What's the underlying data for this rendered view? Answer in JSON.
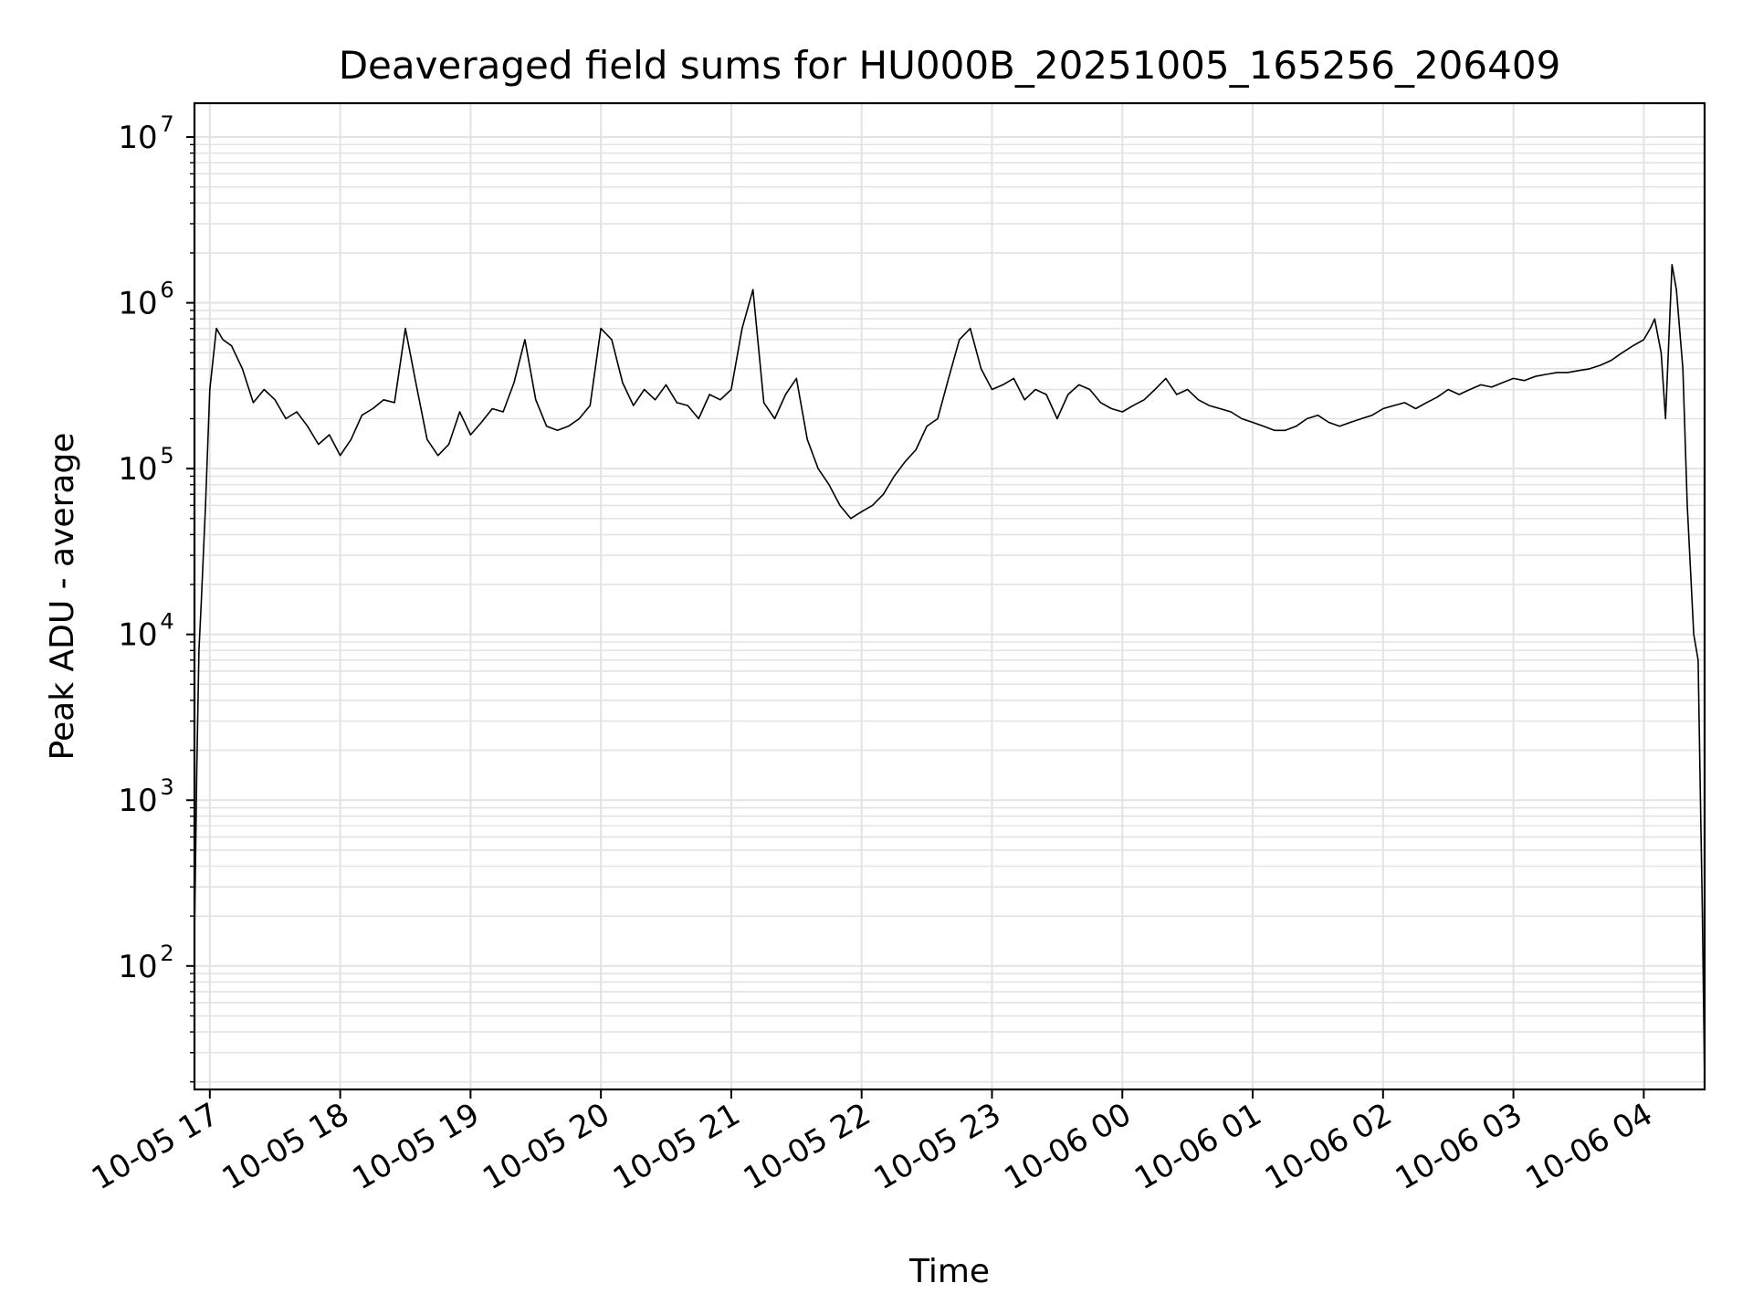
{
  "chart_data": {
    "type": "line",
    "title": "Deaveraged field sums for HU000B_20251005_165256_206409",
    "xlabel": "Time",
    "ylabel": "Peak ADU - average",
    "yscale": "log",
    "ylim": [
      18,
      16000000
    ],
    "xlim": [
      "2025-10-05 16:52:56",
      "2025-10-06 04:28:00"
    ],
    "grid": "major and minor",
    "line_color": "#000000",
    "x_ticks": [
      {
        "t": "2025-10-05 17:00",
        "label": "10-05 17"
      },
      {
        "t": "2025-10-05 18:00",
        "label": "10-05 18"
      },
      {
        "t": "2025-10-05 19:00",
        "label": "10-05 19"
      },
      {
        "t": "2025-10-05 20:00",
        "label": "10-05 20"
      },
      {
        "t": "2025-10-05 21:00",
        "label": "10-05 21"
      },
      {
        "t": "2025-10-05 22:00",
        "label": "10-05 22"
      },
      {
        "t": "2025-10-05 23:00",
        "label": "10-05 23"
      },
      {
        "t": "2025-10-06 00:00",
        "label": "10-06 00"
      },
      {
        "t": "2025-10-06 01:00",
        "label": "10-06 01"
      },
      {
        "t": "2025-10-06 02:00",
        "label": "10-06 02"
      },
      {
        "t": "2025-10-06 03:00",
        "label": "10-06 03"
      },
      {
        "t": "2025-10-06 04:00",
        "label": "10-06 04"
      }
    ],
    "y_ticks": [
      {
        "value": 100,
        "base": "10",
        "exp": "2"
      },
      {
        "value": 1000,
        "base": "10",
        "exp": "3"
      },
      {
        "value": 10000,
        "base": "10",
        "exp": "4"
      },
      {
        "value": 100000,
        "base": "10",
        "exp": "5"
      },
      {
        "value": 1000000,
        "base": "10",
        "exp": "6"
      },
      {
        "value": 10000000,
        "base": "10",
        "exp": "7"
      }
    ],
    "series": [
      {
        "x": [
          "2025-10-05 16:53",
          "2025-10-05 16:54",
          "2025-10-05 16:55",
          "2025-10-05 16:56",
          "2025-10-05 16:58",
          "2025-10-05 17:00",
          "2025-10-05 17:03",
          "2025-10-05 17:06",
          "2025-10-05 17:10",
          "2025-10-05 17:15",
          "2025-10-05 17:20",
          "2025-10-05 17:25",
          "2025-10-05 17:30",
          "2025-10-05 17:35",
          "2025-10-05 17:40",
          "2025-10-05 17:45",
          "2025-10-05 17:50",
          "2025-10-05 17:55",
          "2025-10-05 18:00",
          "2025-10-05 18:05",
          "2025-10-05 18:10",
          "2025-10-05 18:15",
          "2025-10-05 18:20",
          "2025-10-05 18:25",
          "2025-10-05 18:30",
          "2025-10-05 18:35",
          "2025-10-05 18:40",
          "2025-10-05 18:45",
          "2025-10-05 18:50",
          "2025-10-05 18:55",
          "2025-10-05 19:00",
          "2025-10-05 19:05",
          "2025-10-05 19:10",
          "2025-10-05 19:15",
          "2025-10-05 19:20",
          "2025-10-05 19:25",
          "2025-10-05 19:30",
          "2025-10-05 19:35",
          "2025-10-05 19:40",
          "2025-10-05 19:45",
          "2025-10-05 19:50",
          "2025-10-05 19:55",
          "2025-10-05 20:00",
          "2025-10-05 20:05",
          "2025-10-05 20:10",
          "2025-10-05 20:15",
          "2025-10-05 20:20",
          "2025-10-05 20:25",
          "2025-10-05 20:30",
          "2025-10-05 20:35",
          "2025-10-05 20:40",
          "2025-10-05 20:45",
          "2025-10-05 20:50",
          "2025-10-05 20:55",
          "2025-10-05 21:00",
          "2025-10-05 21:05",
          "2025-10-05 21:10",
          "2025-10-05 21:15",
          "2025-10-05 21:20",
          "2025-10-05 21:25",
          "2025-10-05 21:30",
          "2025-10-05 21:35",
          "2025-10-05 21:40",
          "2025-10-05 21:45",
          "2025-10-05 21:50",
          "2025-10-05 21:55",
          "2025-10-05 22:00",
          "2025-10-05 22:05",
          "2025-10-05 22:10",
          "2025-10-05 22:15",
          "2025-10-05 22:20",
          "2025-10-05 22:25",
          "2025-10-05 22:30",
          "2025-10-05 22:35",
          "2025-10-05 22:40",
          "2025-10-05 22:45",
          "2025-10-05 22:50",
          "2025-10-05 22:55",
          "2025-10-05 23:00",
          "2025-10-05 23:05",
          "2025-10-05 23:10",
          "2025-10-05 23:15",
          "2025-10-05 23:20",
          "2025-10-05 23:25",
          "2025-10-05 23:30",
          "2025-10-05 23:35",
          "2025-10-05 23:40",
          "2025-10-05 23:45",
          "2025-10-05 23:50",
          "2025-10-05 23:55",
          "2025-10-06 00:00",
          "2025-10-06 00:05",
          "2025-10-06 00:10",
          "2025-10-06 00:15",
          "2025-10-06 00:20",
          "2025-10-06 00:25",
          "2025-10-06 00:30",
          "2025-10-06 00:35",
          "2025-10-06 00:40",
          "2025-10-06 00:45",
          "2025-10-06 00:50",
          "2025-10-06 00:55",
          "2025-10-06 01:00",
          "2025-10-06 01:05",
          "2025-10-06 01:10",
          "2025-10-06 01:15",
          "2025-10-06 01:20",
          "2025-10-06 01:25",
          "2025-10-06 01:30",
          "2025-10-06 01:35",
          "2025-10-06 01:40",
          "2025-10-06 01:45",
          "2025-10-06 01:50",
          "2025-10-06 01:55",
          "2025-10-06 02:00",
          "2025-10-06 02:05",
          "2025-10-06 02:10",
          "2025-10-06 02:15",
          "2025-10-06 02:20",
          "2025-10-06 02:25",
          "2025-10-06 02:30",
          "2025-10-06 02:35",
          "2025-10-06 02:40",
          "2025-10-06 02:45",
          "2025-10-06 02:50",
          "2025-10-06 02:55",
          "2025-10-06 03:00",
          "2025-10-06 03:05",
          "2025-10-06 03:10",
          "2025-10-06 03:15",
          "2025-10-06 03:20",
          "2025-10-06 03:25",
          "2025-10-06 03:30",
          "2025-10-06 03:35",
          "2025-10-06 03:40",
          "2025-10-06 03:45",
          "2025-10-06 03:50",
          "2025-10-06 03:55",
          "2025-10-06 04:00",
          "2025-10-06 04:03",
          "2025-10-06 04:05",
          "2025-10-06 04:08",
          "2025-10-06 04:10",
          "2025-10-06 04:13",
          "2025-10-06 04:15",
          "2025-10-06 04:18",
          "2025-10-06 04:20",
          "2025-10-06 04:23",
          "2025-10-06 04:25",
          "2025-10-06 04:26",
          "2025-10-06 04:27",
          "2025-10-06 04:28"
        ],
        "y": [
          180,
          1500,
          8000,
          15000,
          60000,
          300000,
          700000,
          600000,
          550000,
          400000,
          250000,
          300000,
          260000,
          200000,
          220000,
          180000,
          140000,
          160000,
          120000,
          150000,
          210000,
          230000,
          260000,
          250000,
          700000,
          320000,
          150000,
          120000,
          140000,
          220000,
          160000,
          190000,
          230000,
          220000,
          330000,
          600000,
          260000,
          180000,
          170000,
          180000,
          200000,
          240000,
          700000,
          600000,
          330000,
          240000,
          300000,
          260000,
          320000,
          250000,
          240000,
          200000,
          280000,
          260000,
          300000,
          700000,
          1200000,
          250000,
          200000,
          280000,
          350000,
          150000,
          100000,
          80000,
          60000,
          50000,
          55000,
          60000,
          70000,
          90000,
          110000,
          130000,
          180000,
          200000,
          350000,
          600000,
          700000,
          400000,
          300000,
          320000,
          350000,
          260000,
          300000,
          280000,
          200000,
          280000,
          320000,
          300000,
          250000,
          230000,
          220000,
          240000,
          260000,
          300000,
          350000,
          280000,
          300000,
          260000,
          240000,
          230000,
          220000,
          200000,
          190000,
          180000,
          170000,
          170000,
          180000,
          200000,
          210000,
          190000,
          180000,
          190000,
          200000,
          210000,
          230000,
          240000,
          250000,
          230000,
          250000,
          270000,
          300000,
          280000,
          300000,
          320000,
          310000,
          330000,
          350000,
          340000,
          360000,
          370000,
          380000,
          380000,
          390000,
          400000,
          420000,
          450000,
          500000,
          550000,
          600000,
          700000,
          800000,
          500000,
          200000,
          1700000,
          1200000,
          400000,
          60000,
          10000,
          7000,
          1200,
          200,
          20
        ]
      }
    ]
  }
}
